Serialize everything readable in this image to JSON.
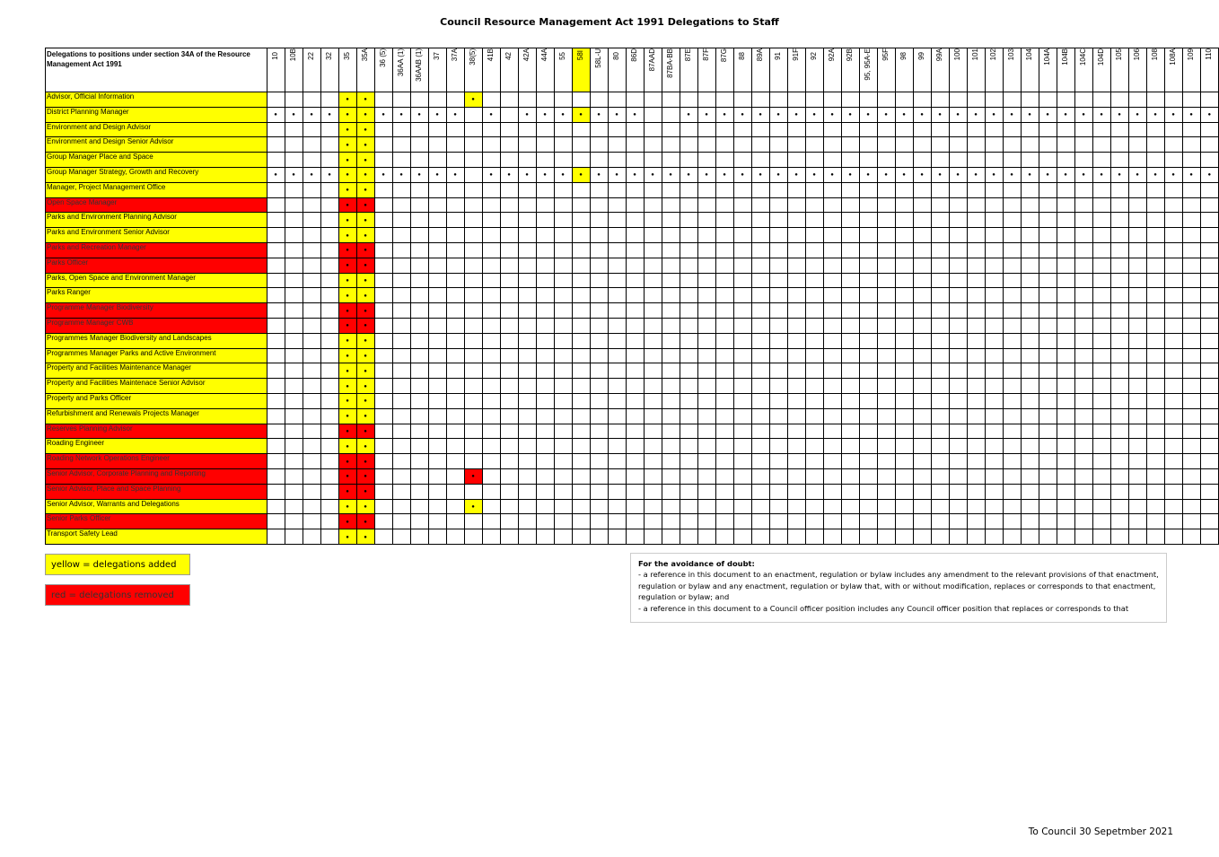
{
  "title": "Council Resource Management Act 1991 Delegations to Staff",
  "table": {
    "corner": "Delegations to positions under section 34A of the Resource Management Act 1991",
    "columns": [
      "10",
      "10B",
      "22",
      "32",
      "35",
      "35A",
      "36 (5)",
      "36AA (1)",
      "36AAB (1)",
      "37",
      "37A",
      "38(5)",
      "41B",
      "42",
      "42A",
      "44A",
      "55",
      "58I",
      "58L-U",
      "80",
      "86D",
      "87AAD",
      "87BA-BB",
      "87E",
      "87F",
      "87G",
      "88",
      "89A",
      "91",
      "91F",
      "92",
      "92A",
      "92B",
      "95, 95A-E",
      "95F",
      "98",
      "99",
      "99A",
      "100",
      "101",
      "102",
      "103",
      "104",
      "104A",
      "104B",
      "104C",
      "104D",
      "105",
      "106",
      "108",
      "108A",
      "109",
      "110"
    ],
    "highlight_column": "58I",
    "rows": [
      {
        "label": "Advisor, Official Information",
        "status": "yellow",
        "marks": [
          "35",
          "35A",
          "38(5)"
        ]
      },
      {
        "label": "District Planning Manager",
        "status": "yellow",
        "marks": [
          "10",
          "10B",
          "22",
          "32",
          "35",
          "35A",
          "36 (5)",
          "36AA (1)",
          "36AAB (1)",
          "37",
          "37A",
          "41B",
          "42A",
          "44A",
          "55",
          "58I",
          "58L-U",
          "80",
          "86D",
          "87E",
          "87F",
          "87G",
          "88",
          "89A",
          "91",
          "91F",
          "92",
          "92A",
          "92B",
          "95, 95A-E",
          "95F",
          "98",
          "99",
          "99A",
          "100",
          "101",
          "102",
          "103",
          "104",
          "104A",
          "104B",
          "104C",
          "104D",
          "105",
          "106",
          "108",
          "108A",
          "109",
          "110"
        ]
      },
      {
        "label": "Environment and Design Advisor",
        "status": "yellow",
        "marks": [
          "35",
          "35A"
        ]
      },
      {
        "label": "Environment and Design Senior Advisor",
        "status": "yellow",
        "marks": [
          "35",
          "35A"
        ]
      },
      {
        "label": "Group Manager Place and Space",
        "status": "yellow",
        "marks": [
          "35",
          "35A"
        ]
      },
      {
        "label": "Group Manager Strategy, Growth and Recovery",
        "status": "yellow",
        "marks": [
          "10",
          "10B",
          "22",
          "32",
          "35",
          "35A",
          "36 (5)",
          "36AA (1)",
          "36AAB (1)",
          "37",
          "37A",
          "41B",
          "42",
          "42A",
          "44A",
          "55",
          "58I",
          "58L-U",
          "80",
          "86D",
          "87AAD",
          "87BA-BB",
          "87E",
          "87F",
          "87G",
          "88",
          "89A",
          "91",
          "91F",
          "92",
          "92A",
          "92B",
          "95, 95A-E",
          "95F",
          "98",
          "99",
          "99A",
          "100",
          "101",
          "102",
          "103",
          "104",
          "104A",
          "104B",
          "104C",
          "104D",
          "105",
          "106",
          "108",
          "108A",
          "109",
          "110"
        ]
      },
      {
        "label": "Manager, Project Management Office",
        "status": "yellow",
        "marks": [
          "35",
          "35A"
        ]
      },
      {
        "label": "Open Space Manager",
        "status": "red",
        "marks": [
          "35",
          "35A"
        ]
      },
      {
        "label": "Parks and Environment Planning Advisor",
        "status": "yellow",
        "marks": [
          "35",
          "35A"
        ]
      },
      {
        "label": "Parks and Environment Senior Advisor",
        "status": "yellow",
        "marks": [
          "35",
          "35A"
        ]
      },
      {
        "label": "Parks and Recreation Manager",
        "status": "red",
        "marks": [
          "35",
          "35A"
        ]
      },
      {
        "label": "Parks Officer",
        "status": "red",
        "marks": [
          "35",
          "35A"
        ]
      },
      {
        "label": "Parks, Open Space and Environment Manager",
        "status": "yellow",
        "marks": [
          "35",
          "35A"
        ]
      },
      {
        "label": "Parks Ranger",
        "status": "yellow",
        "marks": [
          "35",
          "35A"
        ]
      },
      {
        "label": "Programme Manager Biodiversity",
        "status": "red",
        "marks": [
          "35",
          "35A"
        ]
      },
      {
        "label": "Programme Manager CWB",
        "status": "red",
        "marks": [
          "35",
          "35A"
        ]
      },
      {
        "label": "Programmes Manager Biodiversity and Landscapes",
        "status": "yellow",
        "marks": [
          "35",
          "35A"
        ]
      },
      {
        "label": "Programmes Manager Parks and Active Environment",
        "status": "yellow",
        "marks": [
          "35",
          "35A"
        ]
      },
      {
        "label": "Property and Facilities Maintenance Manager",
        "status": "yellow",
        "marks": [
          "35",
          "35A"
        ]
      },
      {
        "label": "Property and Facilities Maintenace Senior Advisor",
        "status": "yellow",
        "marks": [
          "35",
          "35A"
        ]
      },
      {
        "label": "Property and Parks Officer",
        "status": "yellow",
        "marks": [
          "35",
          "35A"
        ]
      },
      {
        "label": "Refurbishment and Renewals Projects Manager",
        "status": "yellow",
        "marks": [
          "35",
          "35A"
        ]
      },
      {
        "label": "Reserves Planning Advisor",
        "status": "red",
        "marks": [
          "35",
          "35A"
        ]
      },
      {
        "label": "Roading  Engineer",
        "status": "yellow",
        "marks": [
          "35",
          "35A"
        ]
      },
      {
        "label": "Roading Network Operations Engineer",
        "status": "red",
        "marks": [
          "35",
          "35A"
        ]
      },
      {
        "label": "Senior Advisor, Corporate Planning and Reporting",
        "status": "red",
        "marks": [
          "35",
          "35A",
          "38(5)"
        ]
      },
      {
        "label": "Senior Advisor, Place and Space Planning",
        "status": "red",
        "marks": [
          "35",
          "35A"
        ]
      },
      {
        "label": "Senior Advisor, Warrants and Delegations",
        "status": "yellow",
        "marks": [
          "35",
          "35A",
          "38(5)"
        ]
      },
      {
        "label": "Senior Parks Officer",
        "status": "red",
        "marks": [
          "35",
          "35A"
        ]
      },
      {
        "label": "Transport Safety Lead",
        "status": "yellow",
        "marks": [
          "35",
          "35A"
        ]
      }
    ],
    "mark_symbol": "●"
  },
  "legend": {
    "yellow": "yellow = delegations added",
    "red": "red = delegations removed"
  },
  "note": {
    "heading": "For the avoidance of doubt:",
    "line1": " - a reference in this document to an enactment, regulation or bylaw includes any amendment to the relevant provisions of that enactment, regulation or bylaw and any enactment, regulation or bylaw that, with or without modification, replaces or corresponds to that enactment, regulation or bylaw; and",
    "line2": " - a reference in this document to a Council officer position includes any Council officer position that replaces or corresponds to that"
  },
  "footer": "To Council 30 Sepetmber 2021",
  "colors": {
    "yellow": "#ffff00",
    "red": "#ff0000"
  }
}
